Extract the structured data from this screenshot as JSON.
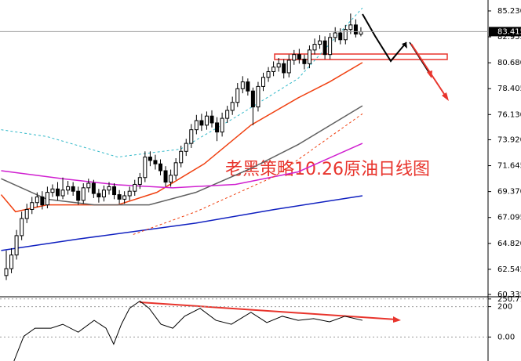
{
  "chart_data": [
    {
      "type": "candlestick",
      "annotation": "老黑策略10.26原油日线图",
      "ylim": [
        60.2,
        86.19
      ],
      "yticks": [
        {
          "value": 85.23,
          "label": "85.230"
        },
        82.955,
        {
          "value": 80.68,
          "label": "80.680"
        },
        78.405,
        {
          "value": 76.13,
          "label": "76.130"
        },
        {
          "value": 73.92,
          "label": "73.920"
        },
        71.645,
        {
          "value": 69.37,
          "label": "69.370"
        },
        67.095,
        {
          "value": 64.82,
          "label": "64.820"
        },
        62.545,
        60.335
      ],
      "last_price": 83.415,
      "up_color": "#ffffff",
      "down_color": "#000000",
      "open": [
        62.0,
        62.6,
        63.8,
        65.5,
        67.0,
        67.8,
        68.4,
        68.9,
        68.2,
        69.3,
        69.6,
        69.0,
        69.5,
        69.8,
        69.4,
        68.6,
        69.7,
        70.1,
        69.2,
        68.9,
        69.5,
        69.8,
        69.1,
        68.7,
        69.0,
        69.4,
        70.0,
        70.6,
        72.4,
        72.1,
        71.8,
        71.2,
        70.2,
        70.8,
        71.9,
        72.9,
        73.6,
        74.8,
        75.6,
        75.2,
        76.0,
        75.4,
        74.6,
        75.8,
        76.5,
        77.2,
        78.4,
        79.0,
        78.2,
        76.8,
        78.6,
        79.4,
        79.9,
        80.3,
        80.6,
        79.8,
        80.9,
        81.4,
        81.0,
        80.6,
        81.8,
        82.3,
        82.6,
        81.4,
        82.9,
        83.3,
        82.7,
        83.6,
        84.0,
        83.2
      ],
      "high": [
        64.2,
        64.4,
        66.0,
        67.6,
        68.3,
        68.9,
        69.3,
        69.4,
        69.8,
        70.0,
        70.2,
        70.6,
        70.3,
        70.2,
        69.8,
        70.1,
        70.5,
        70.4,
        69.6,
        69.9,
        70.2,
        70.1,
        69.5,
        69.4,
        69.8,
        70.4,
        71.0,
        72.9,
        72.9,
        72.6,
        72.2,
        71.6,
        71.3,
        72.3,
        73.4,
        74.0,
        75.3,
        76.1,
        76.2,
        76.4,
        76.5,
        75.9,
        76.3,
        76.9,
        77.7,
        78.9,
        79.5,
        79.3,
        78.5,
        79.0,
        79.8,
        80.3,
        80.8,
        81.1,
        81.0,
        81.4,
        81.8,
        81.9,
        81.4,
        82.2,
        82.8,
        83.1,
        83.0,
        83.3,
        83.8,
        83.7,
        84.0,
        85.0,
        84.5,
        83.8
      ],
      "low": [
        61.6,
        62.2,
        63.4,
        65.1,
        66.6,
        67.4,
        68.0,
        67.8,
        67.9,
        68.9,
        68.6,
        68.7,
        69.1,
        69.0,
        68.2,
        68.3,
        69.3,
        68.8,
        68.4,
        68.5,
        69.1,
        68.7,
        68.3,
        68.3,
        68.6,
        69.0,
        69.6,
        70.2,
        71.6,
        71.3,
        70.8,
        69.8,
        69.8,
        70.4,
        71.5,
        72.5,
        73.2,
        74.4,
        74.7,
        74.8,
        75.0,
        73.8,
        74.2,
        75.4,
        76.1,
        76.8,
        78.0,
        77.8,
        75.2,
        76.4,
        78.2,
        79.0,
        79.5,
        79.9,
        79.3,
        79.4,
        80.5,
        80.6,
        80.1,
        80.2,
        81.4,
        81.9,
        81.0,
        81.0,
        82.5,
        82.3,
        82.3,
        83.2,
        82.9,
        83.0
      ],
      "close": [
        62.6,
        63.8,
        65.5,
        67.0,
        67.8,
        68.4,
        68.9,
        68.2,
        69.3,
        69.6,
        69.0,
        69.5,
        69.8,
        69.4,
        68.6,
        69.7,
        70.1,
        69.2,
        68.9,
        69.5,
        69.8,
        69.1,
        68.7,
        69.0,
        69.4,
        70.0,
        70.6,
        72.4,
        72.1,
        71.8,
        71.2,
        70.2,
        70.8,
        71.9,
        72.9,
        73.6,
        74.8,
        75.6,
        75.2,
        76.0,
        75.4,
        74.6,
        75.8,
        76.5,
        77.2,
        78.4,
        79.0,
        78.2,
        76.8,
        78.6,
        79.4,
        79.9,
        80.3,
        80.6,
        79.8,
        80.9,
        81.4,
        81.0,
        80.6,
        81.8,
        82.3,
        82.6,
        81.4,
        82.9,
        83.3,
        82.7,
        83.6,
        84.0,
        83.2,
        83.4
      ],
      "overlays": [
        {
          "color": "#f04010",
          "x": [
            0,
            2.8,
            8.9,
            22.7,
            30.3,
            39.5,
            48.6,
            57.8,
            63.9,
            70.3
          ],
          "values": [
            69.1,
            67.6,
            68.2,
            68.2,
            69.3,
            71.8,
            75.2,
            77.6,
            79.0,
            80.7
          ]
        },
        {
          "color": "#606060",
          "x": [
            0,
            8.9,
            18.1,
            28.8,
            37.9,
            48.6,
            57.8,
            70.3
          ],
          "values": [
            70.5,
            68.7,
            68.2,
            68.2,
            69.3,
            71.4,
            73.5,
            76.9
          ]
        },
        {
          "color": "#1020c0",
          "x": [
            0,
            15.0,
            37.9,
            53.2,
            70.3
          ],
          "values": [
            64.2,
            65.2,
            66.6,
            67.8,
            69.0
          ]
        },
        {
          "color": "#d020d0",
          "x": [
            0,
            12.0,
            22.7,
            33.4,
            45.6,
            57.8,
            70.3
          ],
          "values": [
            71.2,
            70.5,
            69.96,
            69.7,
            70.0,
            71.1,
            73.6
          ]
        },
        {
          "color": "#30b8c8",
          "style": "dashed",
          "x": [
            0,
            8.9,
            22.7,
            34.9,
            45.6,
            57.8,
            70.3
          ],
          "values": [
            74.8,
            74.2,
            72.4,
            73.1,
            75.9,
            79.3,
            85.5
          ]
        },
        {
          "color": "#f04010",
          "style": "dashed",
          "x": [
            25.7,
            37.9,
            53.2,
            70.3
          ],
          "values": [
            65.6,
            67.6,
            70.7,
            76.2
          ]
        }
      ]
    },
    {
      "type": "line",
      "ylim": [
        -158,
        260
      ],
      "yticks": [
        250.716,
        200,
        {
          "value": 0,
          "label": "0.00"
        }
      ],
      "color": "#000000",
      "x": [
        2.5,
        4.4,
        6.6,
        9.7,
        12.0,
        15.0,
        18.1,
        20.4,
        21.9,
        23.4,
        25.0,
        27.0,
        28.8,
        31.1,
        33.4,
        35.7,
        38.7,
        41.8,
        44.8,
        48.6,
        51.7,
        54.7,
        57.8,
        60.8,
        63.9,
        66.9,
        70.3
      ],
      "values": [
        -158,
        5,
        58,
        58,
        84,
        32,
        110,
        58,
        -47,
        84,
        190,
        237,
        189,
        84,
        58,
        137,
        189,
        110,
        84,
        163,
        95,
        137,
        110,
        121,
        100,
        137,
        110
      ]
    }
  ]
}
